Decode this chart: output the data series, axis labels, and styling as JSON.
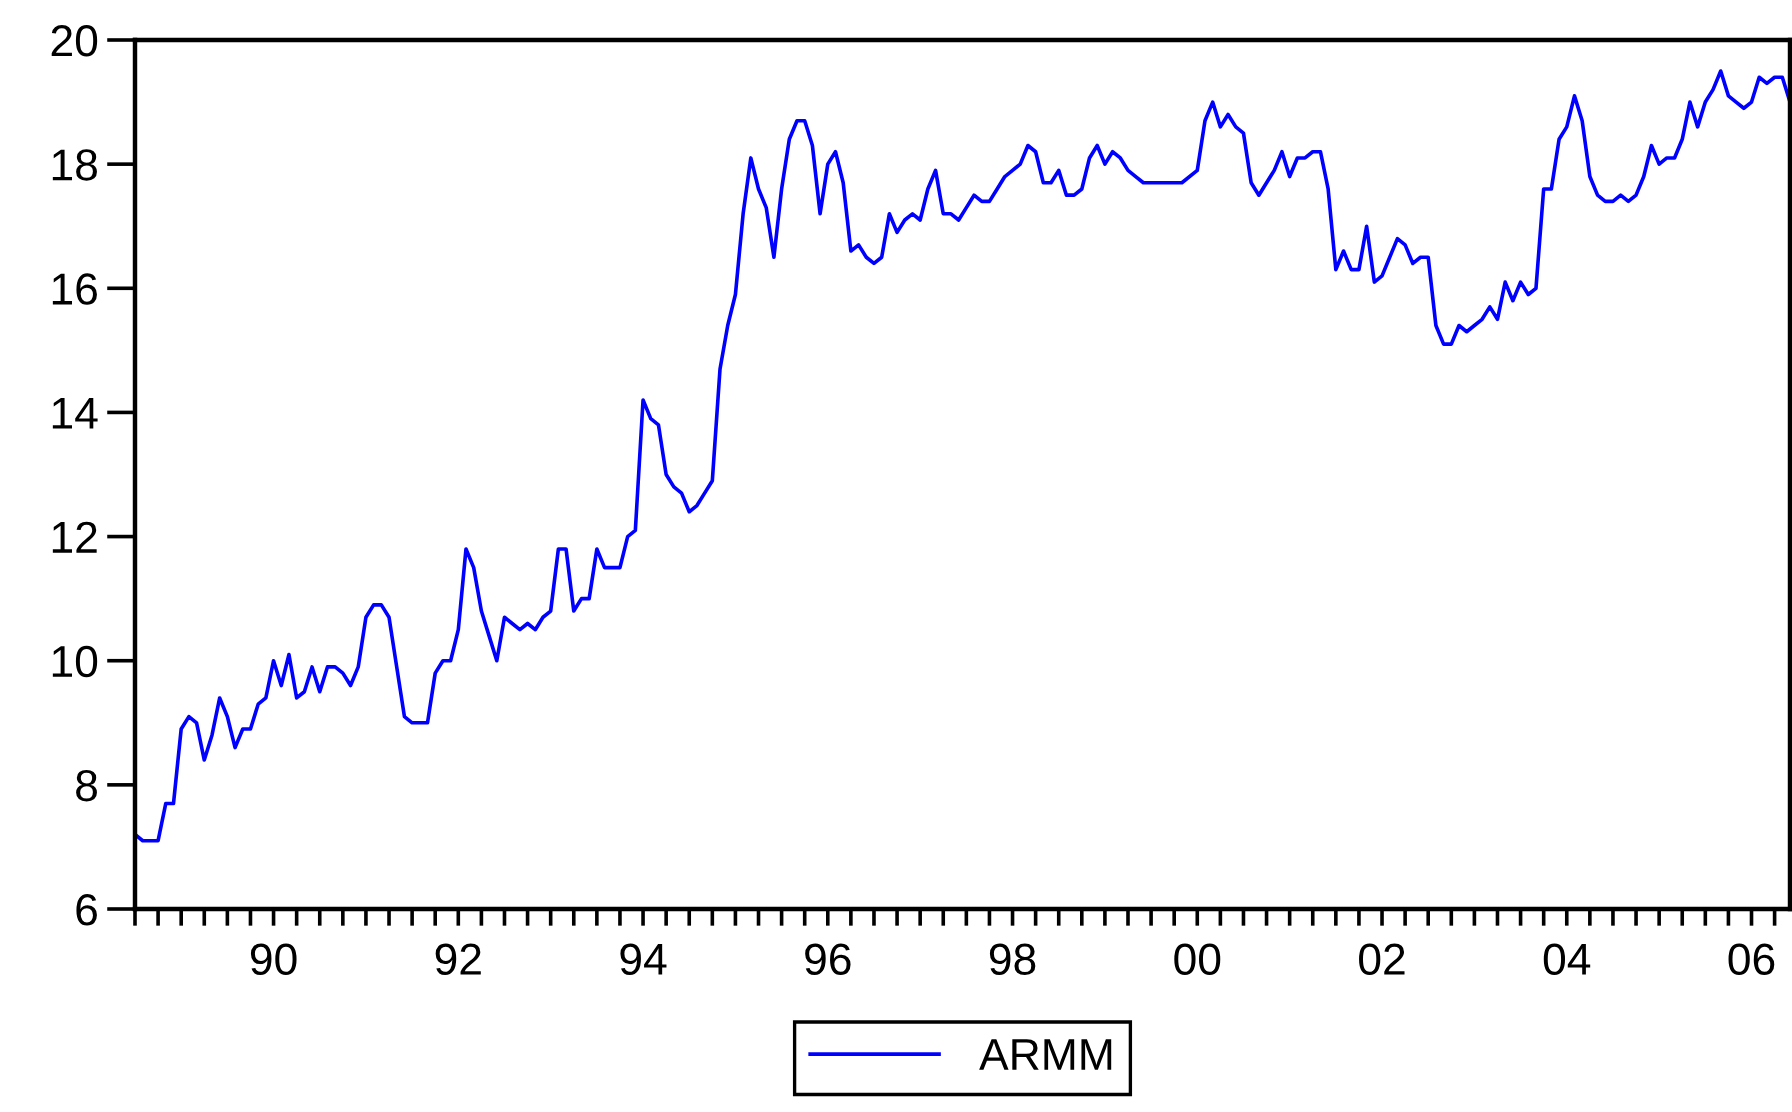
{
  "chart_data": {
    "type": "line",
    "x": [
      "1989-01",
      "1989-02",
      "1989-04",
      "1989-05",
      "1989-06",
      "1989-07",
      "1989-08",
      "1989-09",
      "1989-10",
      "1989-11",
      "1989-12",
      "1990-01",
      "1990-02",
      "1990-03",
      "1990-04",
      "1990-05",
      "1990-06",
      "1990-07",
      "1990-08",
      "1990-09",
      "1990-10",
      "1990-11",
      "1990-12",
      "1991-01",
      "1991-02",
      "1991-03",
      "1991-04",
      "1991-05",
      "1991-06",
      "1991-07",
      "1991-08",
      "1991-09",
      "1991-10",
      "1991-11",
      "1991-12",
      "1992-01",
      "1992-03",
      "1992-04",
      "1992-05",
      "1992-06",
      "1992-07",
      "1992-08",
      "1992-09",
      "1992-10",
      "1992-11",
      "1992-12",
      "1993-01",
      "1993-02",
      "1993-03",
      "1993-04",
      "1993-05",
      "1993-06",
      "1993-07",
      "1993-08",
      "1993-09",
      "1993-10",
      "1993-11",
      "1993-12",
      "1994-01",
      "1994-02",
      "1994-04",
      "1994-05",
      "1994-06",
      "1994-07",
      "1994-08",
      "1994-09",
      "1994-10",
      "1994-11",
      "1994-12",
      "1995-01",
      "1995-02",
      "1995-03",
      "1995-04",
      "1995-05",
      "1995-06",
      "1995-07",
      "1995-08",
      "1995-09",
      "1995-10",
      "1995-11",
      "1995-12",
      "1996-01",
      "1996-02",
      "1996-03",
      "1996-04",
      "1996-05",
      "1996-06",
      "1996-07",
      "1996-08",
      "1996-09",
      "1996-10",
      "1996-11",
      "1996-12",
      "1997-01",
      "1997-02",
      "1997-03",
      "1997-04",
      "1997-05",
      "1997-06",
      "1997-07",
      "1997-08",
      "1997-09",
      "1997-10",
      "1997-11",
      "1997-12",
      "1998-01",
      "1998-02",
      "1998-03",
      "1998-04",
      "1998-05",
      "1998-06",
      "1998-07",
      "1998-08",
      "1998-09",
      "1998-10",
      "1998-11",
      "1998-12",
      "1999-01",
      "1999-02",
      "1999-03",
      "1999-04",
      "1999-05",
      "1999-06",
      "1999-07",
      "1999-08",
      "1999-09",
      "1999-10",
      "1999-11",
      "1999-12",
      "2000-05",
      "2000-07",
      "2000-08",
      "2000-09",
      "2000-10",
      "2000-11",
      "2000-12",
      "2001-01",
      "2001-02",
      "2001-03",
      "2001-04",
      "2001-05",
      "2001-06",
      "2001-07",
      "2001-08",
      "2001-09",
      "2001-10",
      "2001-11",
      "2001-12",
      "2002-01",
      "2002-02",
      "2002-03",
      "2002-04",
      "2002-05",
      "2002-06",
      "2002-07",
      "2002-08",
      "2002-09",
      "2002-10",
      "2002-11",
      "2002-12",
      "2003-01",
      "2003-02",
      "2003-03",
      "2003-04",
      "2003-05",
      "2003-06",
      "2003-07",
      "2003-08",
      "2003-09",
      "2003-10",
      "2003-11",
      "2003-12",
      "2004-01",
      "2004-02",
      "2004-03",
      "2004-04",
      "2004-05",
      "2004-06",
      "2004-07",
      "2004-08",
      "2004-09",
      "2004-10",
      "2004-11",
      "2004-12",
      "2005-01",
      "2005-02",
      "2005-03",
      "2005-04",
      "2005-05",
      "2005-06",
      "2005-07",
      "2005-08",
      "2005-09",
      "2005-10",
      "2005-11",
      "2005-12",
      "2006-01",
      "2006-02",
      "2006-03",
      "2006-04",
      "2006-05",
      "2006-06",
      "2006-07",
      "2006-08",
      "2006-09",
      "2006-10",
      "2006-11",
      "2006-12"
    ],
    "series": [
      {
        "name": "ARMM",
        "color": "#0000ff",
        "values": [
          7.2,
          7.1,
          7.1,
          7.7,
          7.7,
          8.9,
          9.1,
          9.0,
          8.4,
          8.8,
          9.4,
          9.1,
          8.6,
          8.9,
          8.9,
          9.3,
          9.4,
          10.0,
          9.6,
          10.1,
          9.4,
          9.5,
          9.9,
          9.5,
          9.9,
          9.9,
          9.8,
          9.6,
          9.9,
          10.7,
          10.9,
          10.9,
          10.7,
          9.9,
          9.1,
          9.0,
          9.0,
          9.8,
          10.0,
          10.0,
          10.5,
          11.8,
          11.5,
          10.8,
          10.4,
          10.0,
          10.7,
          10.6,
          10.5,
          10.6,
          10.5,
          10.7,
          10.8,
          11.8,
          11.8,
          10.8,
          11.0,
          11.0,
          11.8,
          11.5,
          11.5,
          12.0,
          12.1,
          14.2,
          13.9,
          13.8,
          13.0,
          12.8,
          12.7,
          12.4,
          12.5,
          12.7,
          12.9,
          14.7,
          15.4,
          15.9,
          17.2,
          18.1,
          17.6,
          17.3,
          16.5,
          17.6,
          18.4,
          18.7,
          18.7,
          18.3,
          17.2,
          18.0,
          18.2,
          17.7,
          16.6,
          16.7,
          16.5,
          16.4,
          16.5,
          17.2,
          16.9,
          17.1,
          17.2,
          17.1,
          17.6,
          17.9,
          17.2,
          17.2,
          17.1,
          17.3,
          17.5,
          17.4,
          17.4,
          17.6,
          17.8,
          17.9,
          18.0,
          18.3,
          18.2,
          17.7,
          17.7,
          17.9,
          17.5,
          17.5,
          17.6,
          18.1,
          18.3,
          18.0,
          18.2,
          18.1,
          17.9,
          17.8,
          17.7,
          17.7,
          17.9,
          18.7,
          19.0,
          18.6,
          18.8,
          18.6,
          18.5,
          17.7,
          17.5,
          17.7,
          17.9,
          18.2,
          17.8,
          18.1,
          18.1,
          18.2,
          18.2,
          17.6,
          16.3,
          16.6,
          16.3,
          16.3,
          17.0,
          16.1,
          16.2,
          16.5,
          16.8,
          16.7,
          16.4,
          16.5,
          16.5,
          15.4,
          15.1,
          15.1,
          15.4,
          15.3,
          15.4,
          15.5,
          15.7,
          15.5,
          16.1,
          15.8,
          16.1,
          15.9,
          16.0,
          17.6,
          17.6,
          18.4,
          18.6,
          19.1,
          18.7,
          17.8,
          17.5,
          17.4,
          17.4,
          17.5,
          17.4,
          17.5,
          17.8,
          18.3,
          18.0,
          18.1,
          18.1,
          18.4,
          19.0,
          18.6,
          19.0,
          19.2,
          19.5,
          19.1,
          19.0,
          18.9,
          19.0,
          19.4,
          19.3,
          19.4,
          19.4,
          19.0
        ]
      }
    ],
    "xlim": [
      "1989-01",
      "2006-12"
    ],
    "xticks": [
      {
        "value": "1989-01",
        "label": null
      },
      {
        "value": "1989-04",
        "label": null
      },
      {
        "value": "1989-07",
        "label": null
      },
      {
        "value": "1989-10",
        "label": null
      },
      {
        "value": "1990-01",
        "label": null
      },
      {
        "value": "1990-04",
        "label": null
      },
      {
        "value": "1990-07",
        "label": "90"
      },
      {
        "value": "1990-10",
        "label": null
      },
      {
        "value": "1991-01",
        "label": null
      },
      {
        "value": "1991-04",
        "label": null
      },
      {
        "value": "1991-07",
        "label": null
      },
      {
        "value": "1991-10",
        "label": null
      },
      {
        "value": "1992-01",
        "label": null
      },
      {
        "value": "1992-04",
        "label": null
      },
      {
        "value": "1992-07",
        "label": "92"
      },
      {
        "value": "1992-10",
        "label": null
      },
      {
        "value": "1993-01",
        "label": null
      },
      {
        "value": "1993-04",
        "label": null
      },
      {
        "value": "1993-07",
        "label": null
      },
      {
        "value": "1993-10",
        "label": null
      },
      {
        "value": "1994-01",
        "label": null
      },
      {
        "value": "1994-04",
        "label": null
      },
      {
        "value": "1994-07",
        "label": "94"
      },
      {
        "value": "1994-10",
        "label": null
      },
      {
        "value": "1995-01",
        "label": null
      },
      {
        "value": "1995-04",
        "label": null
      },
      {
        "value": "1995-07",
        "label": null
      },
      {
        "value": "1995-10",
        "label": null
      },
      {
        "value": "1996-01",
        "label": null
      },
      {
        "value": "1996-04",
        "label": null
      },
      {
        "value": "1996-07",
        "label": "96"
      },
      {
        "value": "1996-10",
        "label": null
      },
      {
        "value": "1997-01",
        "label": null
      },
      {
        "value": "1997-04",
        "label": null
      },
      {
        "value": "1997-07",
        "label": null
      },
      {
        "value": "1997-10",
        "label": null
      },
      {
        "value": "1998-01",
        "label": null
      },
      {
        "value": "1998-04",
        "label": null
      },
      {
        "value": "1998-07",
        "label": "98"
      },
      {
        "value": "1998-10",
        "label": null
      },
      {
        "value": "1999-01",
        "label": null
      },
      {
        "value": "1999-04",
        "label": null
      },
      {
        "value": "1999-07",
        "label": null
      },
      {
        "value": "1999-10",
        "label": null
      },
      {
        "value": "2000-01",
        "label": null
      },
      {
        "value": "2000-04",
        "label": null
      },
      {
        "value": "2000-07",
        "label": "00"
      },
      {
        "value": "2000-10",
        "label": null
      },
      {
        "value": "2001-01",
        "label": null
      },
      {
        "value": "2001-04",
        "label": null
      },
      {
        "value": "2001-07",
        "label": null
      },
      {
        "value": "2001-10",
        "label": null
      },
      {
        "value": "2002-01",
        "label": null
      },
      {
        "value": "2002-04",
        "label": null
      },
      {
        "value": "2002-07",
        "label": "02"
      },
      {
        "value": "2002-10",
        "label": null
      },
      {
        "value": "2003-01",
        "label": null
      },
      {
        "value": "2003-04",
        "label": null
      },
      {
        "value": "2003-07",
        "label": null
      },
      {
        "value": "2003-10",
        "label": null
      },
      {
        "value": "2004-01",
        "label": null
      },
      {
        "value": "2004-04",
        "label": null
      },
      {
        "value": "2004-07",
        "label": "04"
      },
      {
        "value": "2004-10",
        "label": null
      },
      {
        "value": "2005-01",
        "label": null
      },
      {
        "value": "2005-04",
        "label": null
      },
      {
        "value": "2005-07",
        "label": null
      },
      {
        "value": "2005-10",
        "label": null
      },
      {
        "value": "2006-01",
        "label": null
      },
      {
        "value": "2006-04",
        "label": null
      },
      {
        "value": "2006-07",
        "label": "06"
      },
      {
        "value": "2006-10",
        "label": null
      }
    ],
    "ylim": [
      6,
      20
    ],
    "yticks": [
      6,
      8,
      10,
      12,
      14,
      16,
      18,
      20
    ],
    "legend": "bottom"
  }
}
